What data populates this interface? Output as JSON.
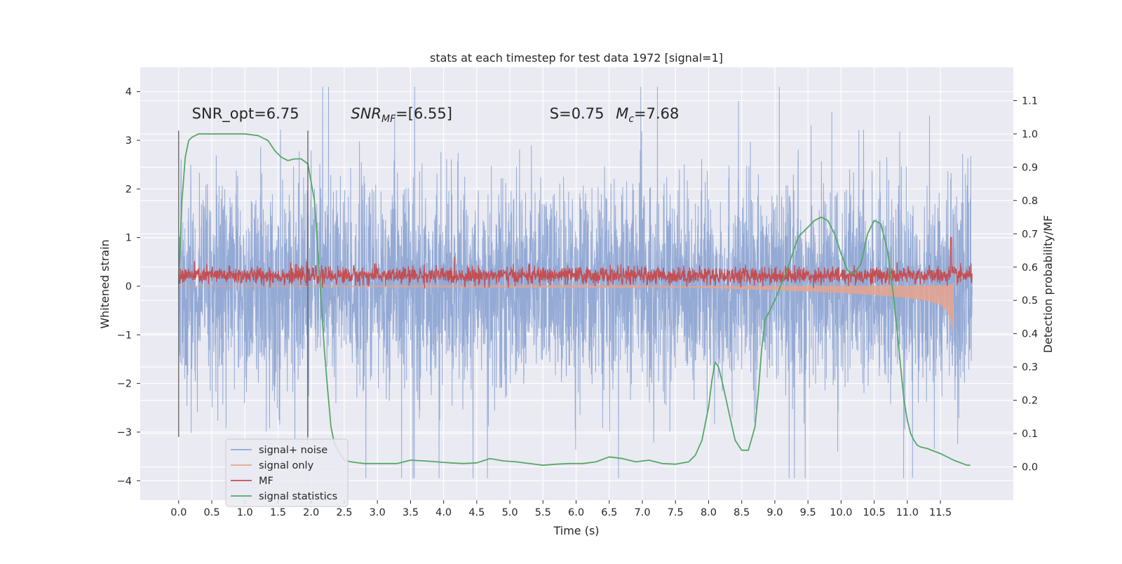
{
  "chart_data": {
    "type": "line",
    "title": "stats at each timestep for test data 1972 [signal=1]",
    "xlabel": "Time (s)",
    "ylabel": "Whitened strain",
    "y2label": "Detection probability/MF",
    "xlim": [
      -0.58,
      12.6
    ],
    "ylim": [
      -4.4,
      4.5
    ],
    "y2lim": [
      -0.1,
      1.2
    ],
    "x_ticks": [
      "0.0",
      "0.5",
      "1.0",
      "1.5",
      "2.0",
      "2.5",
      "3.0",
      "3.5",
      "4.0",
      "4.5",
      "5.0",
      "5.5",
      "6.0",
      "6.5",
      "7.0",
      "7.5",
      "8.0",
      "8.5",
      "9.0",
      "9.5",
      "10.0",
      "10.5",
      "11.0",
      "11.5"
    ],
    "y_ticks": [
      "4",
      "3",
      "2",
      "1",
      "0",
      "−1",
      "−2",
      "−3",
      "−4"
    ],
    "y2_ticks": [
      "1.1",
      "1.0",
      "0.9",
      "0.8",
      "0.7",
      "0.6",
      "0.5",
      "0.4",
      "0.3",
      "0.2",
      "0.1",
      "0.0"
    ],
    "grid": true,
    "legend_position": "lower-left",
    "annotations": [
      {
        "text": "SNR_opt=6.75",
        "x": 0.2,
        "y": 3.3
      },
      {
        "text": "SNR",
        "sub": "MF",
        "tail": "=[6.55]",
        "italic": true,
        "x": 2.6,
        "y": 3.3
      },
      {
        "text": "S=0.75",
        "x": 5.6,
        "y": 3.3
      },
      {
        "text": "M",
        "sub": "c",
        "tail": "=7.68",
        "italic": true,
        "x": 6.6,
        "y": 3.3
      }
    ],
    "vlines": [
      0.0,
      1.95
    ],
    "vline_range": [
      -3.1,
      3.2
    ],
    "series": [
      {
        "name": "signal+ noise",
        "color": "#8fa6d3",
        "axis": "left",
        "kind": "noise",
        "x_range": [
          0.0,
          11.98
        ],
        "band_sigma": 1.0,
        "peak_max": 4.1,
        "peak_min": -3.95
      },
      {
        "name": "signal only",
        "color": "#e6a58d",
        "axis": "left",
        "kind": "chirp",
        "x": [
          0.0,
          7.5,
          8.5,
          9.0,
          9.5,
          10.0,
          10.5,
          11.0,
          11.3,
          11.5,
          11.6,
          11.65,
          11.68,
          11.7
        ],
        "y": [
          0.0,
          -0.02,
          -0.06,
          -0.08,
          -0.11,
          -0.14,
          -0.18,
          -0.24,
          -0.3,
          -0.38,
          -0.5,
          -0.7,
          -1.0,
          0.0
        ]
      },
      {
        "name": "MF",
        "color": "#c44e52",
        "axis": "left",
        "kind": "mf",
        "x_range": [
          0.0,
          11.98
        ],
        "base": 0.22,
        "spike_x": 11.66,
        "spike_y": 1.0
      },
      {
        "name": "signal statistics",
        "color": "#55a868",
        "axis": "right",
        "x": [
          0.0,
          0.05,
          0.1,
          0.15,
          0.2,
          0.3,
          0.5,
          0.8,
          1.0,
          1.2,
          1.35,
          1.45,
          1.55,
          1.65,
          1.75,
          1.85,
          1.95,
          2.05,
          2.1,
          2.15,
          2.2,
          2.25,
          2.3,
          2.35,
          2.4,
          2.5,
          2.6,
          2.8,
          3.0,
          3.3,
          3.5,
          3.7,
          3.9,
          4.1,
          4.3,
          4.5,
          4.7,
          4.9,
          5.1,
          5.3,
          5.5,
          5.7,
          5.9,
          6.1,
          6.3,
          6.5,
          6.7,
          6.9,
          7.1,
          7.3,
          7.5,
          7.7,
          7.8,
          7.9,
          8.0,
          8.05,
          8.1,
          8.15,
          8.2,
          8.3,
          8.4,
          8.5,
          8.6,
          8.7,
          8.75,
          8.8,
          8.85,
          8.9,
          9.0,
          9.2,
          9.35,
          9.5,
          9.6,
          9.7,
          9.8,
          9.9,
          10.0,
          10.1,
          10.2,
          10.3,
          10.4,
          10.5,
          10.6,
          10.7,
          10.8,
          10.85,
          10.9,
          10.95,
          11.0,
          11.05,
          11.1,
          11.15,
          11.2,
          11.3,
          11.5,
          11.7,
          11.9,
          11.95
        ],
        "y": [
          0.55,
          0.8,
          0.93,
          0.98,
          0.99,
          1.0,
          1.0,
          1.0,
          1.0,
          0.995,
          0.98,
          0.95,
          0.93,
          0.92,
          0.925,
          0.925,
          0.91,
          0.8,
          0.65,
          0.5,
          0.35,
          0.23,
          0.12,
          0.07,
          0.05,
          0.02,
          0.015,
          0.01,
          0.01,
          0.01,
          0.02,
          0.018,
          0.015,
          0.012,
          0.01,
          0.012,
          0.025,
          0.018,
          0.015,
          0.01,
          0.005,
          0.008,
          0.01,
          0.01,
          0.015,
          0.03,
          0.025,
          0.015,
          0.02,
          0.01,
          0.008,
          0.015,
          0.035,
          0.08,
          0.18,
          0.26,
          0.315,
          0.3,
          0.26,
          0.17,
          0.08,
          0.05,
          0.05,
          0.12,
          0.22,
          0.35,
          0.44,
          0.46,
          0.5,
          0.6,
          0.69,
          0.72,
          0.74,
          0.75,
          0.74,
          0.7,
          0.64,
          0.59,
          0.58,
          0.61,
          0.7,
          0.74,
          0.73,
          0.65,
          0.5,
          0.4,
          0.3,
          0.2,
          0.14,
          0.1,
          0.08,
          0.065,
          0.06,
          0.055,
          0.04,
          0.02,
          0.005,
          0.005
        ]
      }
    ]
  }
}
